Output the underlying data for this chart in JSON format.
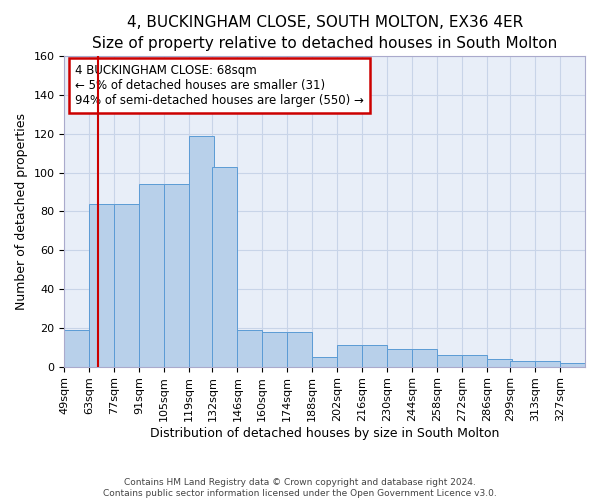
{
  "title": "4, BUCKINGHAM CLOSE, SOUTH MOLTON, EX36 4ER",
  "subtitle": "Size of property relative to detached houses in South Molton",
  "xlabel": "Distribution of detached houses by size in South Molton",
  "ylabel": "Number of detached properties",
  "bar_values": [
    19,
    84,
    84,
    94,
    94,
    119,
    103,
    19,
    18,
    18,
    5,
    11,
    11,
    9,
    9,
    6,
    6,
    4,
    3,
    3,
    2
  ],
  "bin_starts": [
    49,
    63,
    77,
    91,
    105,
    119,
    132,
    146,
    160,
    174,
    188,
    202,
    216,
    230,
    244,
    258,
    272,
    286,
    299,
    313,
    327
  ],
  "bin_width": 14,
  "bar_labels": [
    "49sqm",
    "63sqm",
    "77sqm",
    "91sqm",
    "105sqm",
    "119sqm",
    "132sqm",
    "146sqm",
    "160sqm",
    "174sqm",
    "188sqm",
    "202sqm",
    "216sqm",
    "230sqm",
    "244sqm",
    "258sqm",
    "272sqm",
    "286sqm",
    "299sqm",
    "313sqm",
    "327sqm"
  ],
  "bar_color": "#b8d0ea",
  "bar_edge_color": "#5b9bd5",
  "ylim": [
    0,
    160
  ],
  "yticks": [
    0,
    20,
    40,
    60,
    80,
    100,
    120,
    140,
    160
  ],
  "grid_color": "#c8d4e8",
  "bg_color": "#e8eef8",
  "property_sqm": 68,
  "annotation_text": "4 BUCKINGHAM CLOSE: 68sqm\n← 5% of detached houses are smaller (31)\n94% of semi-detached houses are larger (550) →",
  "annotation_box_color": "#ffffff",
  "annotation_box_edge": "#cc0000",
  "title_fontsize": 11,
  "subtitle_fontsize": 10,
  "xlabel_fontsize": 9,
  "ylabel_fontsize": 9,
  "tick_fontsize": 8,
  "footer_line1": "Contains HM Land Registry data © Crown copyright and database right 2024.",
  "footer_line2": "Contains public sector information licensed under the Open Government Licence v3.0."
}
